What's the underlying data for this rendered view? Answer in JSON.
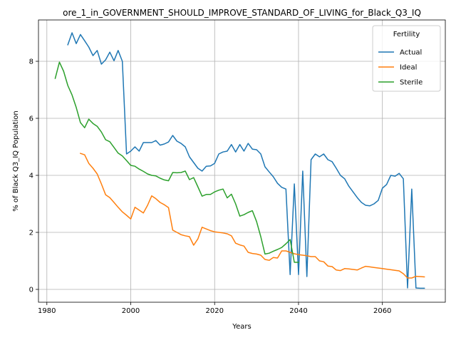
{
  "chart_data": {
    "type": "line",
    "title": "ore_1_in_GOVERNMENT_SHOULD_IMPROVE_STANDARD_OF_LIVING_for_Black_Q3_IQ",
    "xlabel": "Years",
    "ylabel": "% of Black Q3_IQ Population",
    "xlim": [
      1978,
      2075
    ],
    "ylim": [
      -0.45,
      9.45
    ],
    "xticks": [
      1980,
      2000,
      2020,
      2040,
      2060
    ],
    "yticks": [
      0,
      2,
      4,
      6,
      8
    ],
    "grid": true,
    "legend": {
      "title": "Fertility",
      "placement": "top-right"
    },
    "series": [
      {
        "name": "Actual",
        "color": "#1f77b4",
        "x": [
          1985,
          1986,
          1987,
          1988,
          1989,
          1990,
          1991,
          1992,
          1993,
          1994,
          1995,
          1996,
          1997,
          1998,
          1999,
          2000,
          2001,
          2002,
          2003,
          2004,
          2005,
          2006,
          2007,
          2008,
          2009,
          2010,
          2011,
          2012,
          2013,
          2014,
          2015,
          2016,
          2017,
          2018,
          2019,
          2020,
          2021,
          2022,
          2023,
          2024,
          2025,
          2026,
          2027,
          2028,
          2029,
          2030,
          2031,
          2032,
          2033,
          2034,
          2035,
          2036,
          2037,
          2038,
          2039,
          2040,
          2041,
          2042,
          2043,
          2044,
          2045,
          2046,
          2047,
          2048,
          2049,
          2050,
          2051,
          2052,
          2053,
          2054,
          2055,
          2056,
          2057,
          2058,
          2059,
          2060,
          2061,
          2062,
          2063,
          2064,
          2065,
          2066,
          2067,
          2068,
          2069,
          2070
        ],
        "y": [
          8.58,
          9.0,
          8.62,
          8.94,
          8.72,
          8.5,
          8.2,
          8.38,
          7.9,
          8.05,
          8.32,
          8.02,
          8.38,
          8.0,
          4.75,
          4.85,
          5.0,
          4.85,
          5.15,
          5.15,
          5.15,
          5.22,
          5.06,
          5.1,
          5.17,
          5.4,
          5.2,
          5.12,
          5.0,
          4.65,
          4.45,
          4.25,
          4.15,
          4.32,
          4.33,
          4.42,
          4.75,
          4.82,
          4.85,
          5.08,
          4.82,
          5.08,
          4.85,
          5.12,
          4.92,
          4.9,
          4.75,
          4.3,
          4.12,
          3.95,
          3.72,
          3.58,
          3.52,
          0.52,
          3.7,
          0.52,
          4.15,
          0.45,
          4.55,
          4.75,
          4.65,
          4.75,
          4.55,
          4.48,
          4.25,
          4.0,
          3.88,
          3.62,
          3.42,
          3.22,
          3.05,
          2.95,
          2.93,
          3.0,
          3.12,
          3.55,
          3.68,
          4.0,
          3.97,
          4.07,
          3.88,
          0.05,
          3.52,
          0.05,
          0.04,
          0.04
        ]
      },
      {
        "name": "Ideal",
        "color": "#ff7f0e",
        "x": [
          1988,
          1989,
          1990,
          1991,
          1992,
          1993,
          1994,
          1995,
          1996,
          1997,
          1998,
          1999,
          2000,
          2001,
          2002,
          2003,
          2004,
          2005,
          2006,
          2007,
          2008,
          2009,
          2010,
          2011,
          2012,
          2013,
          2014,
          2015,
          2016,
          2017,
          2018,
          2019,
          2020,
          2021,
          2022,
          2023,
          2024,
          2025,
          2026,
          2027,
          2028,
          2029,
          2030,
          2031,
          2032,
          2033,
          2034,
          2035,
          2036,
          2037,
          2038,
          2039,
          2040,
          2041,
          2042,
          2043,
          2044,
          2045,
          2046,
          2047,
          2048,
          2049,
          2050,
          2051,
          2052,
          2053,
          2054,
          2055,
          2056,
          2057,
          2058,
          2059,
          2060,
          2061,
          2062,
          2063,
          2064,
          2065,
          2066,
          2067,
          2068,
          2069,
          2070
        ],
        "y": [
          4.77,
          4.72,
          4.42,
          4.25,
          4.05,
          3.7,
          3.32,
          3.22,
          3.05,
          2.88,
          2.72,
          2.6,
          2.47,
          2.88,
          2.78,
          2.68,
          2.95,
          3.28,
          3.18,
          3.05,
          2.97,
          2.87,
          2.08,
          2.0,
          1.92,
          1.88,
          1.85,
          1.55,
          1.77,
          2.18,
          2.12,
          2.06,
          2.02,
          2.0,
          1.98,
          1.95,
          1.88,
          1.62,
          1.56,
          1.52,
          1.3,
          1.26,
          1.24,
          1.2,
          1.05,
          1.02,
          1.12,
          1.1,
          1.35,
          1.35,
          1.3,
          1.25,
          1.22,
          1.2,
          1.18,
          1.15,
          1.15,
          1.0,
          0.97,
          0.82,
          0.8,
          0.68,
          0.66,
          0.73,
          0.72,
          0.7,
          0.68,
          0.75,
          0.81,
          0.79,
          0.77,
          0.75,
          0.73,
          0.71,
          0.69,
          0.67,
          0.65,
          0.55,
          0.4,
          0.4,
          0.46,
          0.45,
          0.44
        ]
      },
      {
        "name": "Sterile",
        "color": "#2ca02c",
        "x": [
          1982,
          1983,
          1984,
          1985,
          1986,
          1987,
          1988,
          1989,
          1990,
          1991,
          1992,
          1993,
          1994,
          1995,
          1996,
          1997,
          1998,
          1999,
          2000,
          2001,
          2002,
          2003,
          2004,
          2005,
          2006,
          2007,
          2008,
          2009,
          2010,
          2011,
          2012,
          2013,
          2014,
          2015,
          2016,
          2017,
          2018,
          2019,
          2020,
          2021,
          2022,
          2023,
          2024,
          2025,
          2026,
          2027,
          2028,
          2029,
          2030,
          2031,
          2032,
          2033,
          2034,
          2035,
          2036,
          2037,
          2038,
          2039,
          2040
        ],
        "y": [
          7.4,
          7.97,
          7.65,
          7.15,
          6.82,
          6.38,
          5.85,
          5.67,
          5.97,
          5.82,
          5.72,
          5.52,
          5.25,
          5.18,
          4.98,
          4.78,
          4.68,
          4.52,
          4.35,
          4.32,
          4.22,
          4.14,
          4.05,
          4.0,
          3.98,
          3.9,
          3.84,
          3.81,
          4.1,
          4.09,
          4.1,
          4.15,
          3.85,
          3.92,
          3.6,
          3.27,
          3.33,
          3.33,
          3.42,
          3.48,
          3.52,
          3.21,
          3.34,
          3.0,
          2.57,
          2.62,
          2.7,
          2.76,
          2.38,
          1.85,
          1.24,
          1.27,
          1.34,
          1.4,
          1.47,
          1.6,
          1.75,
          0.95,
          0.95
        ]
      }
    ]
  }
}
